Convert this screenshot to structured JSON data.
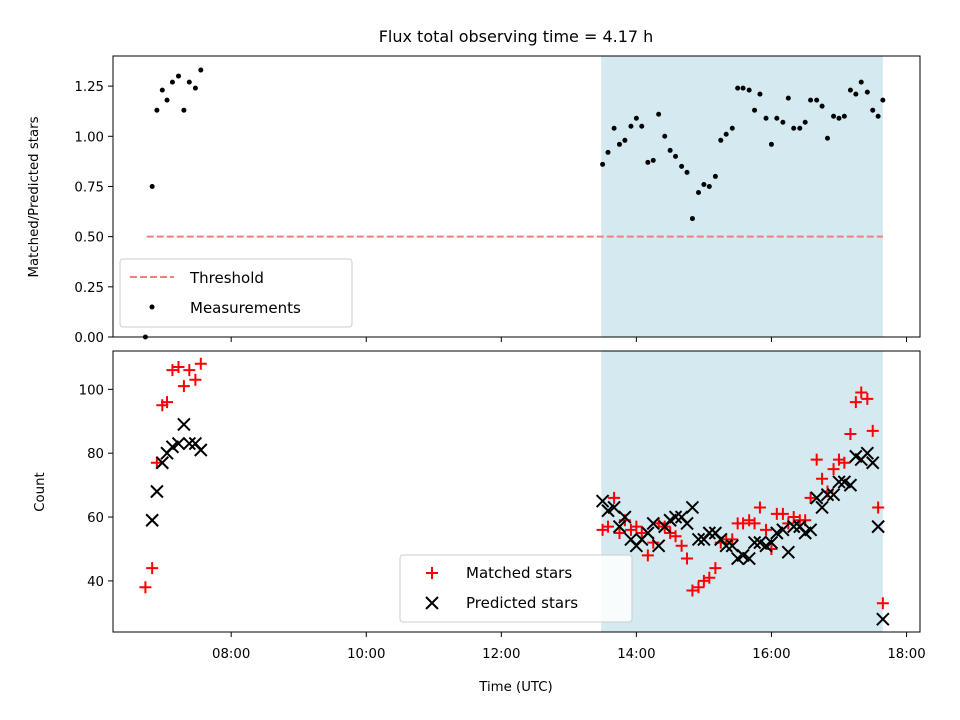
{
  "chart_data": [
    {
      "type": "scatter",
      "title": "Flux total observing time = 4.17 h",
      "xlabel": "",
      "ylabel": "Matched/Predicted stars",
      "x_axis": "time (UTC, decimal hours)",
      "xlim": [
        6.25,
        18.2
      ],
      "ylim": [
        0.0,
        1.4
      ],
      "yticks": [
        0.0,
        0.25,
        0.5,
        0.75,
        1.0,
        1.25
      ],
      "ytick_labels": [
        "0.00",
        "0.25",
        "0.50",
        "0.75",
        "1.00",
        "1.25"
      ],
      "legend_position": "lower-left",
      "shaded_region": {
        "x": [
          13.48,
          17.65
        ],
        "color": "#d4eaf0"
      },
      "threshold": {
        "name": "Threshold",
        "y": 0.5,
        "x": [
          6.75,
          17.65
        ],
        "color": "#f08080",
        "style": "dashed"
      },
      "series": [
        {
          "name": "Measurements",
          "color": "#000000",
          "points": [
            [
              6.73,
              0.0
            ],
            [
              6.83,
              0.75
            ],
            [
              6.9,
              1.13
            ],
            [
              6.98,
              1.23
            ],
            [
              7.05,
              1.18
            ],
            [
              7.13,
              1.27
            ],
            [
              7.22,
              1.3
            ],
            [
              7.3,
              1.13
            ],
            [
              7.38,
              1.27
            ],
            [
              7.47,
              1.24
            ],
            [
              7.55,
              1.33
            ],
            [
              13.5,
              0.86
            ],
            [
              13.58,
              0.92
            ],
            [
              13.67,
              1.04
            ],
            [
              13.75,
              0.96
            ],
            [
              13.83,
              0.98
            ],
            [
              13.92,
              1.05
            ],
            [
              14.0,
              1.09
            ],
            [
              14.08,
              1.05
            ],
            [
              14.17,
              0.87
            ],
            [
              14.25,
              0.88
            ],
            [
              14.33,
              1.11
            ],
            [
              14.42,
              1.0
            ],
            [
              14.5,
              0.93
            ],
            [
              14.58,
              0.9
            ],
            [
              14.67,
              0.85
            ],
            [
              14.75,
              0.82
            ],
            [
              14.83,
              0.59
            ],
            [
              14.92,
              0.72
            ],
            [
              15.0,
              0.76
            ],
            [
              15.08,
              0.75
            ],
            [
              15.17,
              0.8
            ],
            [
              15.25,
              0.98
            ],
            [
              15.33,
              1.01
            ],
            [
              15.42,
              1.04
            ],
            [
              15.5,
              1.24
            ],
            [
              15.58,
              1.24
            ],
            [
              15.67,
              1.23
            ],
            [
              15.75,
              1.13
            ],
            [
              15.83,
              1.21
            ],
            [
              15.92,
              1.09
            ],
            [
              16.0,
              0.96
            ],
            [
              16.08,
              1.09
            ],
            [
              16.17,
              1.07
            ],
            [
              16.25,
              1.19
            ],
            [
              16.33,
              1.04
            ],
            [
              16.42,
              1.04
            ],
            [
              16.5,
              1.07
            ],
            [
              16.58,
              1.18
            ],
            [
              16.67,
              1.18
            ],
            [
              16.75,
              1.15
            ],
            [
              16.83,
              0.99
            ],
            [
              16.92,
              1.1
            ],
            [
              17.0,
              1.09
            ],
            [
              17.08,
              1.1
            ],
            [
              17.17,
              1.23
            ],
            [
              17.25,
              1.21
            ],
            [
              17.33,
              1.27
            ],
            [
              17.42,
              1.22
            ],
            [
              17.5,
              1.13
            ],
            [
              17.58,
              1.1
            ],
            [
              17.65,
              1.18
            ]
          ]
        }
      ]
    },
    {
      "type": "scatter",
      "title": "",
      "xlabel": "Time (UTC)",
      "ylabel": "Count",
      "xlim": [
        6.25,
        18.2
      ],
      "ylim": [
        24,
        112
      ],
      "xticks": [
        8,
        10,
        12,
        14,
        16,
        18
      ],
      "xtick_labels": [
        "08:00",
        "10:00",
        "12:00",
        "14:00",
        "16:00",
        "18:00"
      ],
      "yticks": [
        40,
        60,
        80,
        100
      ],
      "ytick_labels": [
        "40",
        "60",
        "80",
        "100"
      ],
      "legend_position": "lower-center",
      "shaded_region": {
        "x": [
          13.48,
          17.65
        ],
        "color": "#d4eaf0"
      },
      "series": [
        {
          "name": "Matched stars",
          "marker": "plus",
          "color": "#ff0000",
          "points": [
            [
              6.73,
              38
            ],
            [
              6.83,
              44
            ],
            [
              6.9,
              77
            ],
            [
              6.98,
              95
            ],
            [
              7.05,
              96
            ],
            [
              7.13,
              106
            ],
            [
              7.22,
              107
            ],
            [
              7.3,
              101
            ],
            [
              7.38,
              106
            ],
            [
              7.47,
              103
            ],
            [
              7.55,
              108
            ],
            [
              13.5,
              56
            ],
            [
              13.58,
              57
            ],
            [
              13.67,
              66
            ],
            [
              13.75,
              55
            ],
            [
              13.83,
              59
            ],
            [
              13.92,
              56
            ],
            [
              14.0,
              57
            ],
            [
              14.08,
              55
            ],
            [
              14.17,
              48
            ],
            [
              14.25,
              52
            ],
            [
              14.33,
              58
            ],
            [
              14.42,
              57
            ],
            [
              14.5,
              55
            ],
            [
              14.58,
              54
            ],
            [
              14.67,
              51
            ],
            [
              14.75,
              47
            ],
            [
              14.83,
              37
            ],
            [
              14.92,
              38
            ],
            [
              15.0,
              40
            ],
            [
              15.08,
              41
            ],
            [
              15.17,
              44
            ],
            [
              15.25,
              52
            ],
            [
              15.33,
              53
            ],
            [
              15.42,
              53
            ],
            [
              15.5,
              58
            ],
            [
              15.58,
              58
            ],
            [
              15.67,
              59
            ],
            [
              15.75,
              58
            ],
            [
              15.83,
              63
            ],
            [
              15.92,
              56
            ],
            [
              16.0,
              50
            ],
            [
              16.08,
              61
            ],
            [
              16.17,
              61
            ],
            [
              16.25,
              58
            ],
            [
              16.33,
              60
            ],
            [
              16.42,
              59
            ],
            [
              16.5,
              59
            ],
            [
              16.58,
              66
            ],
            [
              16.67,
              78
            ],
            [
              16.75,
              72
            ],
            [
              16.83,
              68
            ],
            [
              16.92,
              75
            ],
            [
              17.0,
              78
            ],
            [
              17.08,
              77
            ],
            [
              17.17,
              86
            ],
            [
              17.25,
              96
            ],
            [
              17.33,
              99
            ],
            [
              17.42,
              97
            ],
            [
              17.5,
              87
            ],
            [
              17.58,
              63
            ],
            [
              17.65,
              33
            ]
          ]
        },
        {
          "name": "Predicted stars",
          "marker": "cross",
          "color": "#000000",
          "points": [
            [
              6.83,
              59
            ],
            [
              6.9,
              68
            ],
            [
              6.98,
              77
            ],
            [
              7.05,
              80
            ],
            [
              7.13,
              82
            ],
            [
              7.22,
              83
            ],
            [
              7.3,
              89
            ],
            [
              7.38,
              83
            ],
            [
              7.47,
              83
            ],
            [
              7.55,
              81
            ],
            [
              13.5,
              65
            ],
            [
              13.58,
              62
            ],
            [
              13.67,
              63
            ],
            [
              13.75,
              57
            ],
            [
              13.83,
              60
            ],
            [
              13.92,
              53
            ],
            [
              14.0,
              51
            ],
            [
              14.08,
              53
            ],
            [
              14.17,
              55
            ],
            [
              14.25,
              58
            ],
            [
              14.33,
              51
            ],
            [
              14.42,
              57
            ],
            [
              14.5,
              59
            ],
            [
              14.58,
              60
            ],
            [
              14.67,
              60
            ],
            [
              14.75,
              58
            ],
            [
              14.83,
              63
            ],
            [
              14.92,
              53
            ],
            [
              15.0,
              53
            ],
            [
              15.08,
              55
            ],
            [
              15.17,
              55
            ],
            [
              15.25,
              53
            ],
            [
              15.33,
              51
            ],
            [
              15.42,
              51
            ],
            [
              15.5,
              47
            ],
            [
              15.58,
              48
            ],
            [
              15.67,
              47
            ],
            [
              15.75,
              52
            ],
            [
              15.83,
              52
            ],
            [
              15.92,
              51
            ],
            [
              16.0,
              52
            ],
            [
              16.08,
              55
            ],
            [
              16.17,
              56
            ],
            [
              16.25,
              49
            ],
            [
              16.33,
              57
            ],
            [
              16.42,
              57
            ],
            [
              16.5,
              55
            ],
            [
              16.58,
              56
            ],
            [
              16.67,
              66
            ],
            [
              16.75,
              63
            ],
            [
              16.83,
              67
            ],
            [
              16.92,
              67
            ],
            [
              17.0,
              71
            ],
            [
              17.08,
              71
            ],
            [
              17.17,
              70
            ],
            [
              17.25,
              79
            ],
            [
              17.33,
              78
            ],
            [
              17.42,
              80
            ],
            [
              17.5,
              77
            ],
            [
              17.58,
              57
            ],
            [
              17.65,
              28
            ]
          ]
        }
      ]
    }
  ]
}
